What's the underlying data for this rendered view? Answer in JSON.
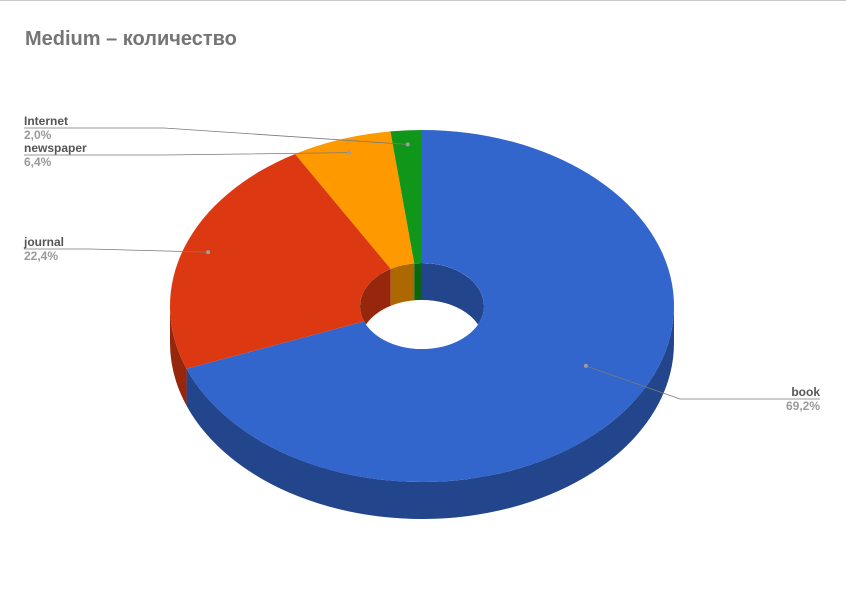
{
  "chart_data": {
    "type": "pie",
    "variant": "3d-donut",
    "title": "Medium – количество",
    "slices": [
      {
        "label": "book",
        "value": 69.2,
        "value_label": "69,2%",
        "color": "#3366cc"
      },
      {
        "label": "journal",
        "value": 22.4,
        "value_label": "22,4%",
        "color": "#dc3912"
      },
      {
        "label": "newspaper",
        "value": 6.4,
        "value_label": "6,4%",
        "color": "#ff9900"
      },
      {
        "label": "Internet",
        "value": 2.0,
        "value_label": "2,0%",
        "color": "#109618"
      }
    ],
    "legend": "labeled slices"
  }
}
